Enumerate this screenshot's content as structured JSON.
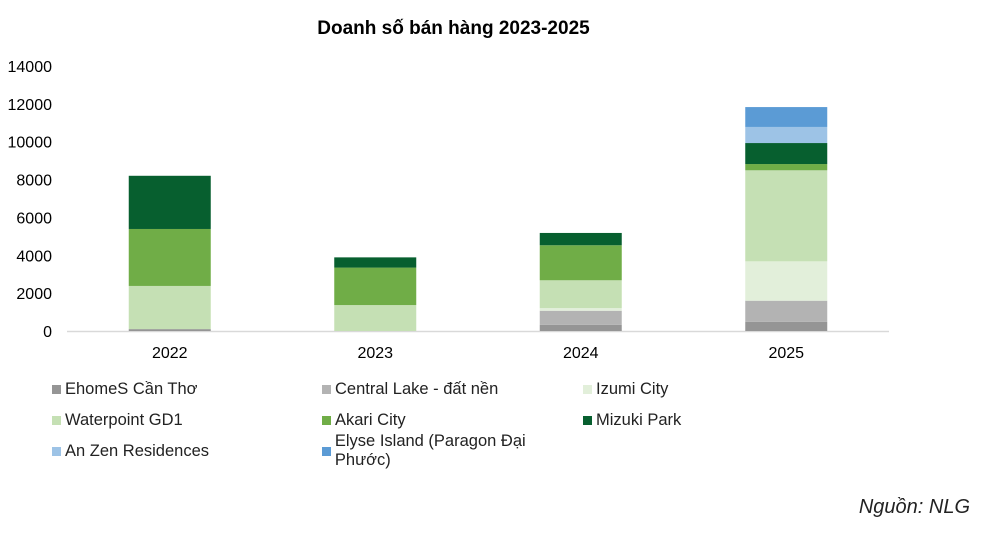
{
  "chart_data": {
    "type": "bar",
    "stacked": true,
    "title": "Doanh số bán hàng 2023-2025",
    "xlabel": "",
    "ylabel": "",
    "ylim": [
      0,
      14000
    ],
    "yticks": [
      0,
      2000,
      4000,
      6000,
      8000,
      10000,
      12000,
      14000
    ],
    "grid": false,
    "legend_position": "bottom",
    "categories": [
      "2022",
      "2023",
      "2024",
      "2025"
    ],
    "series": [
      {
        "name": "EhomeS Cần Thơ",
        "color": "#959595",
        "values": [
          100,
          0,
          330,
          480
        ]
      },
      {
        "name": "Central Lake - đất nền",
        "color": "#b3b3b3",
        "values": [
          0,
          0,
          740,
          1120
        ]
      },
      {
        "name": "Izumi City",
        "color": "#e2efda",
        "values": [
          0,
          0,
          140,
          2080
        ]
      },
      {
        "name": "Waterpoint GD1",
        "color": "#c5e0b4",
        "values": [
          2280,
          1370,
          1470,
          4810
        ]
      },
      {
        "name": "Akari City",
        "color": "#70ad47",
        "values": [
          3010,
          1980,
          1850,
          330
        ]
      },
      {
        "name": "Mizuki Park",
        "color": "#075f2f",
        "values": [
          2810,
          540,
          650,
          1110
        ]
      },
      {
        "name": "An Zen Residences",
        "color": "#9dc3e6",
        "values": [
          0,
          0,
          0,
          850
        ]
      },
      {
        "name": "Elyse Island (Paragon Đại Phước)",
        "color": "#5b9bd5",
        "values": [
          0,
          0,
          0,
          1050
        ]
      }
    ]
  },
  "source": "Nguồn: NLG"
}
